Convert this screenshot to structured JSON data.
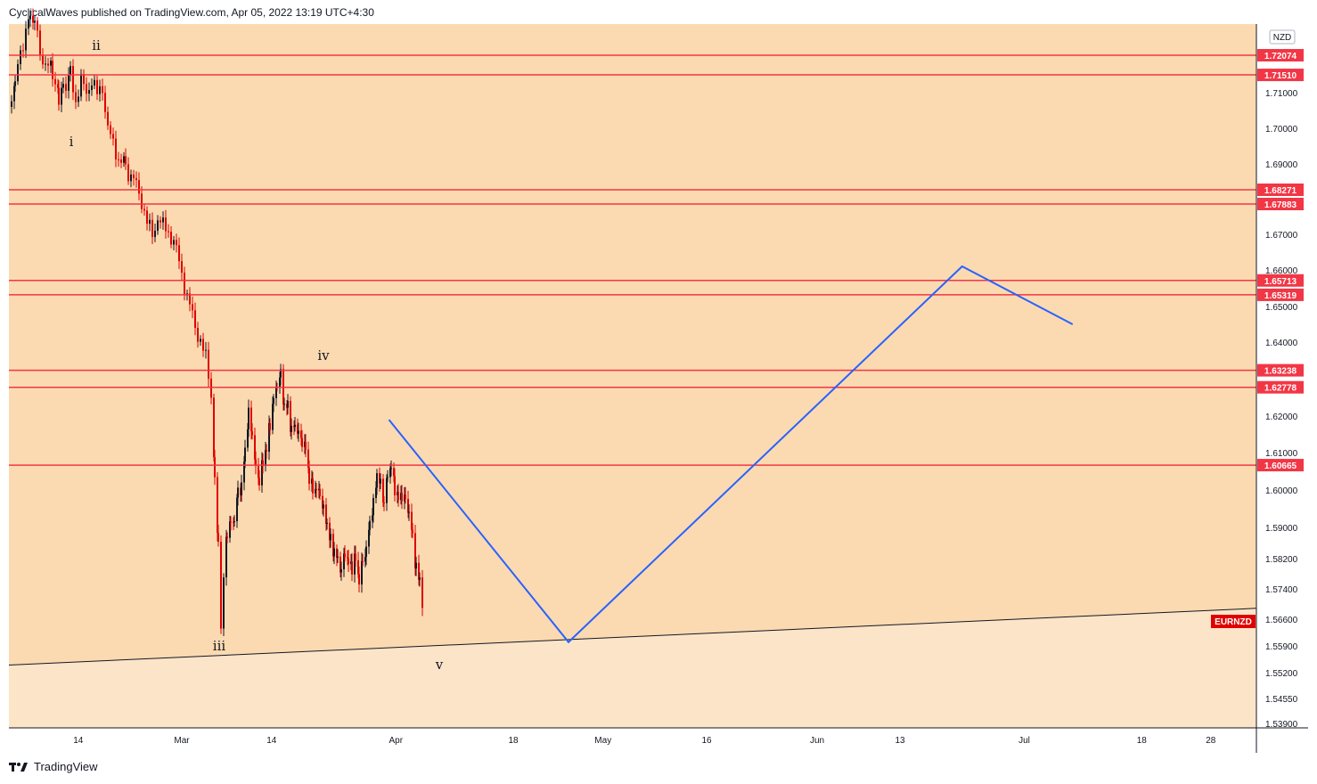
{
  "header": {
    "publisher_note": "CyclicalWaves published on TradingView.com, Apr 05, 2022 13:19 UTC+4:30"
  },
  "footer": {
    "brand": "TradingView"
  },
  "chart_data": {
    "type": "candlestick",
    "symbol": "EURNZD",
    "currency_label": "NZD",
    "y_ticks": [
      "1.71000",
      "1.70000",
      "1.69000",
      "1.67000",
      "1.66000",
      "1.65000",
      "1.64000",
      "1.62000",
      "1.61000",
      "1.60000",
      "1.59000",
      "1.58200",
      "1.57400",
      "1.56600",
      "1.55900",
      "1.55200",
      "1.54550",
      "1.53900"
    ],
    "x_ticks": [
      "14",
      "Mar",
      "14",
      "Apr",
      "18",
      "May",
      "16",
      "Jun",
      "13",
      "Jul",
      "18",
      "28"
    ],
    "levels": [
      {
        "label": "1.72074",
        "value": 1.72074
      },
      {
        "label": "1.71510",
        "value": 1.7151
      },
      {
        "label": "1.68271",
        "value": 1.68271
      },
      {
        "label": "1.67883",
        "value": 1.67883
      },
      {
        "label": "1.65713",
        "value": 1.65713
      },
      {
        "label": "1.65319",
        "value": 1.65319
      },
      {
        "label": "1.63238",
        "value": 1.63238
      },
      {
        "label": "1.62778",
        "value": 1.62778
      },
      {
        "label": "1.60665",
        "value": 1.60665
      }
    ],
    "wave_labels": [
      "ii",
      "i",
      "iii",
      "iv",
      "v"
    ],
    "projection": [
      {
        "date": "2022-03-31",
        "value": 1.619
      },
      {
        "date": "2022-04-26",
        "value": 1.56
      },
      {
        "date": "2022-06-22",
        "value": 1.661
      },
      {
        "date": "2022-07-08",
        "value": 1.645
      }
    ],
    "trendline": [
      {
        "date": "2022-01-29",
        "value": 1.5535
      },
      {
        "date": "2022-07-06",
        "value": 1.5665
      }
    ],
    "colors": {
      "level_line": "#f23645",
      "projection": "#2962ff",
      "upper_fill": "#fbdab1",
      "lower_fill": "#fce4c8",
      "candle_up": "#131722",
      "candle_down": "#e00000"
    }
  }
}
